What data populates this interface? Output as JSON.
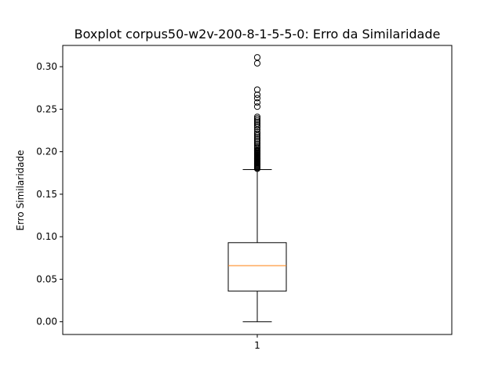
{
  "chart_data": {
    "type": "boxplot",
    "title": "Boxplot corpus50-w2v-200-8-1-5-5-0: Erro da Similaridade",
    "xlabel": "",
    "ylabel": "Erro Similaridade",
    "ylim": [
      -0.015,
      0.325
    ],
    "yticks": [
      0.0,
      0.05,
      0.1,
      0.15,
      0.2,
      0.25,
      0.3
    ],
    "ytick_labels": [
      "0.00",
      "0.05",
      "0.10",
      "0.15",
      "0.20",
      "0.25",
      "0.30"
    ],
    "categories": [
      "1"
    ],
    "grid": false,
    "colors": {
      "box": "#000000",
      "median": "#ff7f0e",
      "outlier": "#000000"
    },
    "boxes": [
      {
        "name": "1",
        "whisker_low": 0.0,
        "q1": 0.036,
        "median": 0.066,
        "q3": 0.093,
        "whisker_high": 0.179,
        "outliers": [
          0.18,
          0.181,
          0.182,
          0.183,
          0.184,
          0.185,
          0.186,
          0.187,
          0.188,
          0.189,
          0.19,
          0.191,
          0.192,
          0.193,
          0.194,
          0.195,
          0.196,
          0.197,
          0.198,
          0.199,
          0.2,
          0.201,
          0.202,
          0.204,
          0.205,
          0.207,
          0.209,
          0.211,
          0.213,
          0.215,
          0.217,
          0.219,
          0.221,
          0.223,
          0.226,
          0.229,
          0.231,
          0.233,
          0.235,
          0.237,
          0.239,
          0.241,
          0.253,
          0.258,
          0.263,
          0.267,
          0.273,
          0.304,
          0.311
        ]
      }
    ]
  }
}
